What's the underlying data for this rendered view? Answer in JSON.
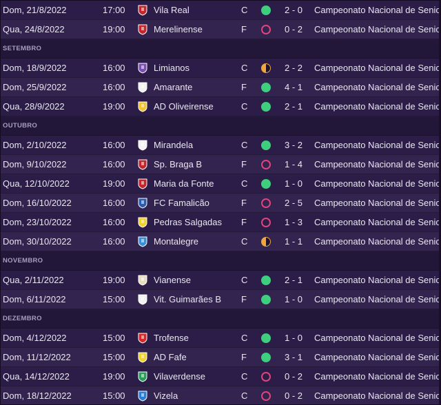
{
  "competition": "Campeonato Nacional de Seniores",
  "months": [
    "SETEMBRO",
    "OUTUBRO",
    "NOVEMBRO",
    "DEZEMBRO"
  ],
  "colors": {
    "win": "#3ecf7e",
    "loss": "#e0457a",
    "draw": "#f2a53a",
    "background": "#2a1c45"
  },
  "matches": [
    {
      "date": "Dom, 21/8/2022",
      "time": "17:00",
      "team": "Vila Real",
      "venue": "C",
      "result": "win",
      "score": "2 - 0",
      "badge": "vila-real-crest-icon",
      "badge_color": "#c1272d"
    },
    {
      "date": "Qua, 24/8/2022",
      "time": "19:00",
      "team": "Merelinense",
      "venue": "F",
      "result": "loss",
      "score": "0 - 2",
      "badge": "merelinense-crest-icon",
      "badge_color": "#c1272d"
    },
    {
      "date": "Dom, 18/9/2022",
      "time": "16:00",
      "team": "Limianos",
      "venue": "C",
      "result": "draw",
      "score": "2 - 2",
      "badge": "limianos-crest-icon",
      "badge_color": "#7a4fb0"
    },
    {
      "date": "Dom, 25/9/2022",
      "time": "16:00",
      "team": "Amarante",
      "venue": "F",
      "result": "win",
      "score": "4 - 1",
      "badge": "amarante-crest-icon",
      "badge_color": "#f2f2f2"
    },
    {
      "date": "Qua, 28/9/2022",
      "time": "19:00",
      "team": "AD Oliveirense",
      "venue": "C",
      "result": "win",
      "score": "2 - 1",
      "badge": "ad-oliveirense-crest-icon",
      "badge_color": "#f2c230"
    },
    {
      "date": "Dom, 2/10/2022",
      "time": "16:00",
      "team": "Mirandela",
      "venue": "C",
      "result": "win",
      "score": "3 - 2",
      "badge": "mirandela-crest-icon",
      "badge_color": "#f2f2f2"
    },
    {
      "date": "Dom, 9/10/2022",
      "time": "16:00",
      "team": "Sp. Braga B",
      "venue": "F",
      "result": "loss",
      "score": "1 - 4",
      "badge": "sp-braga-b-crest-icon",
      "badge_color": "#c1272d"
    },
    {
      "date": "Qua, 12/10/2022",
      "time": "19:00",
      "team": "Maria da Fonte",
      "venue": "C",
      "result": "win",
      "score": "1 - 0",
      "badge": "maria-da-fonte-crest-icon",
      "badge_color": "#c1272d"
    },
    {
      "date": "Dom, 16/10/2022",
      "time": "16:00",
      "team": "FC Famalicão",
      "venue": "F",
      "result": "loss",
      "score": "2 - 5",
      "badge": "fc-famalicao-crest-icon",
      "badge_color": "#2a5db0"
    },
    {
      "date": "Dom, 23/10/2022",
      "time": "16:00",
      "team": "Pedras Salgadas",
      "venue": "F",
      "result": "loss",
      "score": "1 - 3",
      "badge": "pedras-salgadas-crest-icon",
      "badge_color": "#f2d230"
    },
    {
      "date": "Dom, 30/10/2022",
      "time": "16:00",
      "team": "Montalegre",
      "venue": "C",
      "result": "draw",
      "score": "1 - 1",
      "badge": "montalegre-crest-icon",
      "badge_color": "#3b8fd4"
    },
    {
      "date": "Qua, 2/11/2022",
      "time": "19:00",
      "team": "Vianense",
      "venue": "C",
      "result": "win",
      "score": "2 - 1",
      "badge": "vianense-crest-icon",
      "badge_color": "#e8dcc0"
    },
    {
      "date": "Dom, 6/11/2022",
      "time": "15:00",
      "team": "Vit. Guimarães B",
      "venue": "F",
      "result": "win",
      "score": "1 - 0",
      "badge": "vit-guimaraes-b-crest-icon",
      "badge_color": "#f2f2f2"
    },
    {
      "date": "Dom, 4/12/2022",
      "time": "15:00",
      "team": "Trofense",
      "venue": "C",
      "result": "win",
      "score": "1 - 0",
      "badge": "trofense-crest-icon",
      "badge_color": "#d62828"
    },
    {
      "date": "Dom, 11/12/2022",
      "time": "15:00",
      "team": "AD Fafe",
      "venue": "F",
      "result": "win",
      "score": "3 - 1",
      "badge": "ad-fafe-crest-icon",
      "badge_color": "#f2d230"
    },
    {
      "date": "Qua, 14/12/2022",
      "time": "19:00",
      "team": "Vilaverdense",
      "venue": "C",
      "result": "loss",
      "score": "0 - 2",
      "badge": "vilaverdense-crest-icon",
      "badge_color": "#2a9d5a"
    },
    {
      "date": "Dom, 18/12/2022",
      "time": "15:00",
      "team": "Vizela",
      "venue": "C",
      "result": "loss",
      "score": "0 - 2",
      "badge": "vizela-crest-icon",
      "badge_color": "#2a7fd4"
    }
  ]
}
